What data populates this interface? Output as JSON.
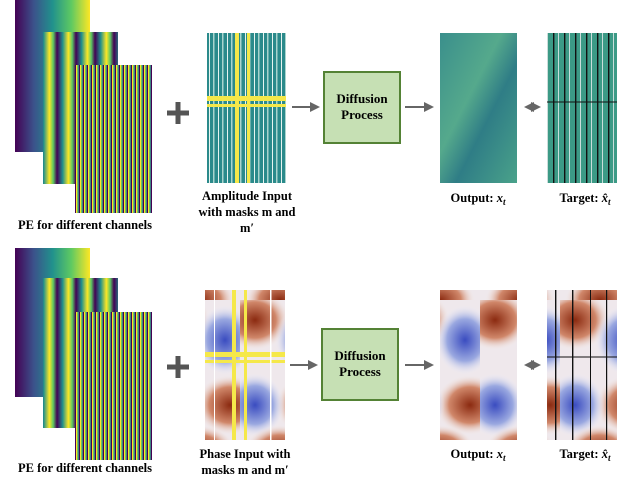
{
  "rows": [
    {
      "pe_label": "PE for different channels",
      "input_label": [
        "Amplitude Input",
        "with masks m and",
        "m′"
      ],
      "process": [
        "Diffusion",
        "Process"
      ],
      "output_label": {
        "text": "Output: ",
        "var": "x",
        "sub": "t"
      },
      "target_label": {
        "text": "Target: ",
        "var": "x̂",
        "sub": "t"
      }
    },
    {
      "pe_label": "PE for different channels",
      "input_label": [
        "Phase Input with",
        "masks m and m′"
      ],
      "process": [
        "Diffusion",
        "Process"
      ],
      "output_label": {
        "text": "Output: ",
        "var": "x",
        "sub": "t"
      },
      "target_label": {
        "text": "Target: ",
        "var": "x̂",
        "sub": "t"
      }
    }
  ]
}
